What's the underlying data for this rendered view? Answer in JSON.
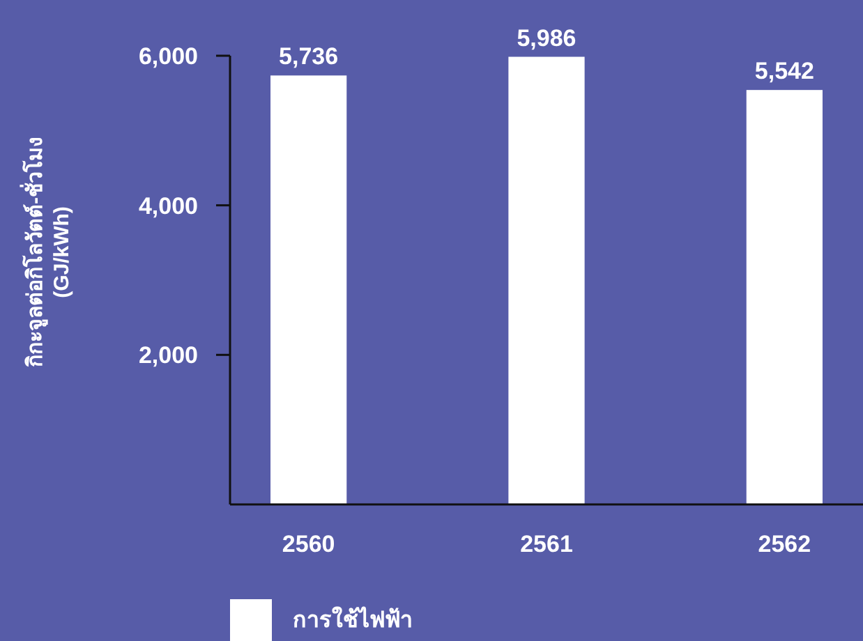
{
  "chart_data": {
    "type": "bar",
    "ylabel": "กิกะจูลต่อกิโลวัตต์-ชั่วโมง\n(GJ/kWh)",
    "categories": [
      "2560",
      "2561",
      "2562"
    ],
    "series": [
      {
        "name": "การใช้ไฟฟ้า",
        "color": "#ffffff",
        "values": [
          5736,
          5986,
          5542
        ],
        "value_labels": [
          "5,736",
          "5,986",
          "5,542"
        ]
      }
    ],
    "ylim": [
      0,
      6000
    ],
    "yticks": [
      {
        "value": 2000,
        "label": "2,000"
      },
      {
        "value": 4000,
        "label": "4,000"
      },
      {
        "value": 6000,
        "label": "6,000"
      }
    ],
    "legend": "bottom left",
    "grid": false
  }
}
